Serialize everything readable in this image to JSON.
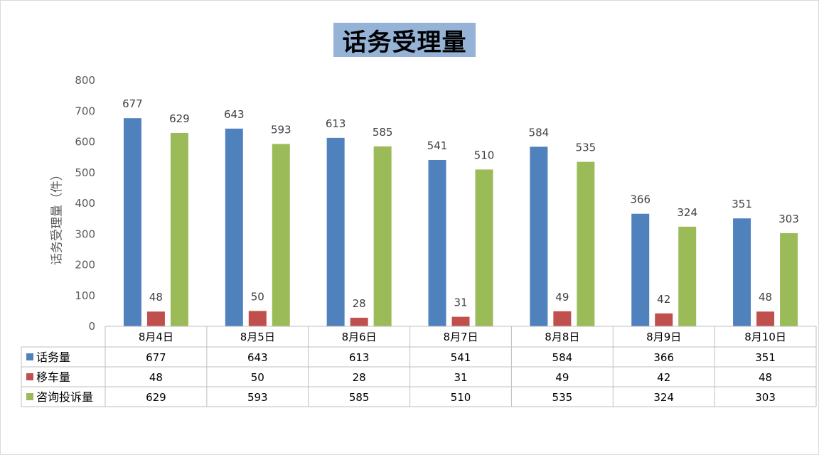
{
  "chart_data": {
    "type": "bar",
    "title": "话务受理量",
    "ylabel": "话务受理量（件）",
    "ylim": [
      0,
      800
    ],
    "yticks": [
      0,
      100,
      200,
      300,
      400,
      500,
      600,
      700,
      800
    ],
    "grid": false,
    "legend": "data-table",
    "categories": [
      "8月4日",
      "8月5日",
      "8月6日",
      "8月7日",
      "8月8日",
      "8月9日",
      "8月10日"
    ],
    "series": [
      {
        "name": "话务量",
        "color": "#4f81bd",
        "values": [
          677,
          643,
          613,
          541,
          584,
          366,
          351
        ]
      },
      {
        "name": "移车量",
        "color": "#c0504d",
        "values": [
          48,
          50,
          28,
          31,
          49,
          42,
          48
        ]
      },
      {
        "name": "咨询投诉量",
        "color": "#9bbb59",
        "values": [
          629,
          593,
          585,
          510,
          535,
          324,
          303
        ]
      }
    ]
  }
}
